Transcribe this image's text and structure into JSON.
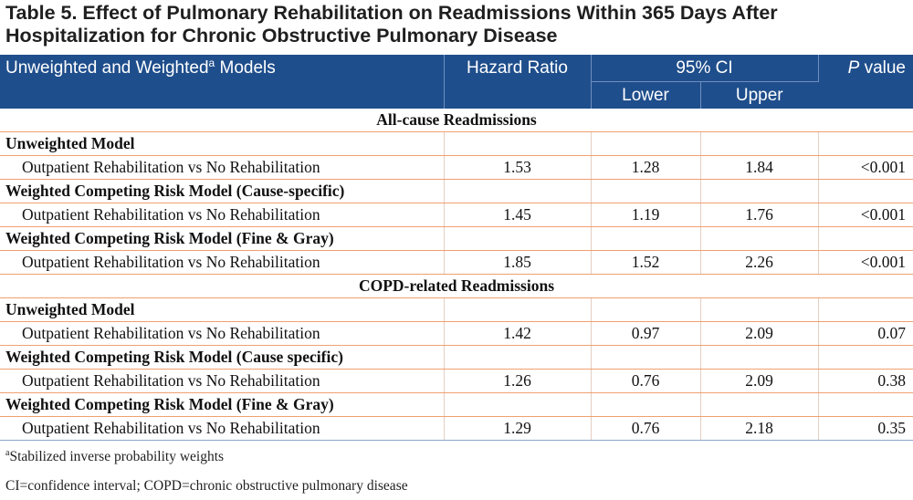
{
  "title": {
    "line1": "Table 5. Effect of Pulmonary Rehabilitation on Readmissions Within 365 Days After",
    "line2": "Hospitalization for Chronic Obstructive Pulmonary Disease"
  },
  "header": {
    "models_label": "Unweighted and Weighted",
    "models_sup": "a",
    "models_suffix": " Models",
    "hazard_ratio": "Hazard Ratio",
    "ci": "95% CI",
    "lower": "Lower",
    "upper": "Upper",
    "p_italic": "P",
    "p_rest": " value"
  },
  "rows": [
    {
      "type": "section",
      "label": "All-cause Readmissions"
    },
    {
      "type": "model",
      "label": "Unweighted Model"
    },
    {
      "type": "data",
      "label": "Outpatient Rehabilitation vs No Rehabilitation",
      "hr": "1.53",
      "lower": "1.28",
      "upper": "1.84",
      "p": "<0.001"
    },
    {
      "type": "model",
      "label": "Weighted Competing Risk Model (Cause-specific)"
    },
    {
      "type": "data",
      "label": "Outpatient Rehabilitation vs No Rehabilitation",
      "hr": "1.45",
      "lower": "1.19",
      "upper": "1.76",
      "p": "<0.001"
    },
    {
      "type": "model",
      "label": "Weighted Competing Risk Model (Fine & Gray)"
    },
    {
      "type": "data",
      "label": "Outpatient Rehabilitation vs No Rehabilitation",
      "hr": "1.85",
      "lower": "1.52",
      "upper": "2.26",
      "p": "<0.001"
    },
    {
      "type": "section",
      "label": "COPD-related Readmissions"
    },
    {
      "type": "model",
      "label": "Unweighted Model"
    },
    {
      "type": "data",
      "label": "Outpatient Rehabilitation vs No Rehabilitation",
      "hr": "1.42",
      "lower": "0.97",
      "upper": "2.09",
      "p": "0.07"
    },
    {
      "type": "model",
      "label": "Weighted Competing Risk Model (Cause specific)"
    },
    {
      "type": "data",
      "label": "Outpatient Rehabilitation vs No Rehabilitation",
      "hr": "1.26",
      "lower": "0.76",
      "upper": "2.09",
      "p": "0.38"
    },
    {
      "type": "model",
      "label": "Weighted Competing Risk Model (Fine & Gray)"
    },
    {
      "type": "data",
      "label": "Outpatient Rehabilitation vs No Rehabilitation",
      "hr": "1.29",
      "lower": "0.76",
      "upper": "2.18",
      "p": "0.35"
    }
  ],
  "footnotes": {
    "note_a_sup": "a",
    "note_a": "Stabilized inverse probability weights",
    "abbreviations": "CI=confidence interval; COPD=chronic obstructive pulmonary disease"
  },
  "colors": {
    "header_bg": "#1f4e8c",
    "row_rule": "#f0a070"
  }
}
